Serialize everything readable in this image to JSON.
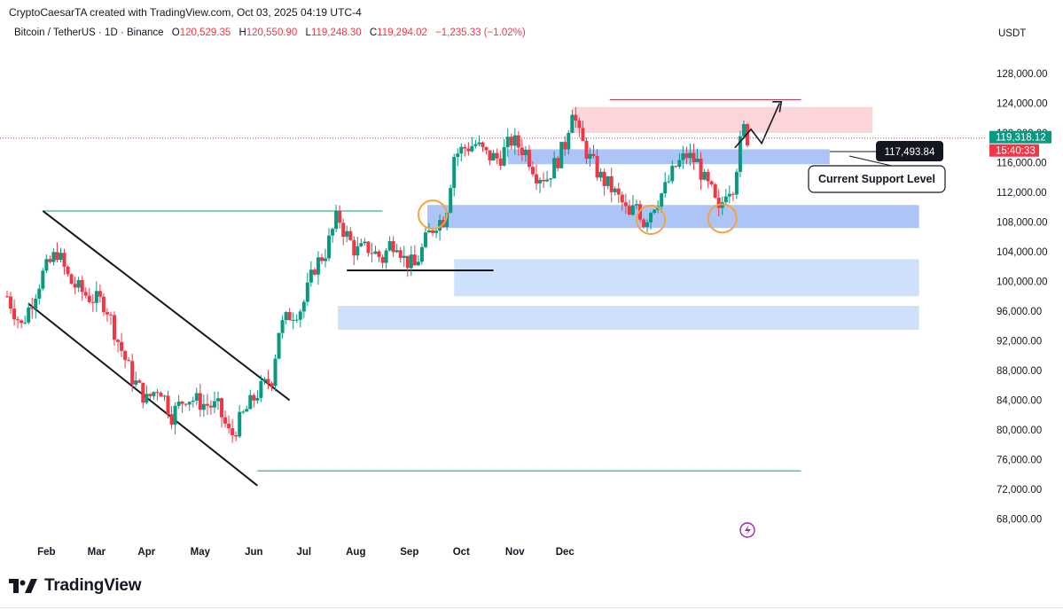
{
  "caption": "CryptoCaesarTA created with TradingView.com, Oct 03, 2025 04:19 UTC-4",
  "legend": {
    "symbol": "Bitcoin / TetherUS · 1D · Binance",
    "o_label": "O",
    "o": "120,529.35",
    "h_label": "H",
    "h": "120,550.90",
    "l_label": "L",
    "l": "119,248.30",
    "c_label": "C",
    "c": "119,294.02",
    "change": "−1,235.33 (−1.02%)"
  },
  "currency": "USDT",
  "brand": "TradingView",
  "colors": {
    "up": "#089981",
    "down": "#f23645",
    "resistance": "#fbd5d8",
    "support": "#6a93f0",
    "support_light": "#cfe0fb",
    "accent": "#2962ff"
  },
  "chart_data": {
    "type": "candlestick",
    "title": "Bitcoin / TetherUS · 1D · Binance",
    "price_scale": "linear",
    "ylim": [
      64000,
      131000
    ],
    "y_ticks": [
      "128,000.00",
      "124,000.00",
      "120,000.00",
      "116,000.00",
      "112,000.00",
      "108,000.00",
      "104,000.00",
      "100,000.00",
      "96,000.00",
      "92,000.00",
      "88,000.00",
      "84,000.00",
      "80,000.00",
      "76,000.00",
      "72,000.00",
      "68,000.00"
    ],
    "x_ticks": [
      "Feb",
      "Mar",
      "Apr",
      "May",
      "Jun",
      "Jul",
      "Aug",
      "Sep",
      "Oct",
      "Nov",
      "Dec"
    ],
    "last_price": "119,318.12",
    "countdown": "15:40:33",
    "annotation_price": "117,493.84",
    "annotation_text": "Current Support Level",
    "close_path": [
      {
        "x": 0,
        "y": 98000
      },
      {
        "x": 8,
        "y": 94000
      },
      {
        "x": 20,
        "y": 101000
      },
      {
        "x": 28,
        "y": 104000
      },
      {
        "x": 35,
        "y": 100000
      },
      {
        "x": 45,
        "y": 98000
      },
      {
        "x": 55,
        "y": 97000
      },
      {
        "x": 62,
        "y": 92000
      },
      {
        "x": 70,
        "y": 87000
      },
      {
        "x": 78,
        "y": 84000
      },
      {
        "x": 85,
        "y": 86000
      },
      {
        "x": 92,
        "y": 82000
      },
      {
        "x": 100,
        "y": 84500
      },
      {
        "x": 110,
        "y": 83500
      },
      {
        "x": 118,
        "y": 83000
      },
      {
        "x": 125,
        "y": 79000
      },
      {
        "x": 132,
        "y": 82000
      },
      {
        "x": 140,
        "y": 85000
      },
      {
        "x": 148,
        "y": 87000
      },
      {
        "x": 152,
        "y": 93500
      },
      {
        "x": 158,
        "y": 95500
      },
      {
        "x": 165,
        "y": 96500
      },
      {
        "x": 172,
        "y": 102000
      },
      {
        "x": 178,
        "y": 104000
      },
      {
        "x": 185,
        "y": 109000
      },
      {
        "x": 188,
        "y": 107000
      },
      {
        "x": 195,
        "y": 104000
      },
      {
        "x": 202,
        "y": 104500
      },
      {
        "x": 210,
        "y": 103000
      },
      {
        "x": 214,
        "y": 105000
      },
      {
        "x": 218,
        "y": 105500
      },
      {
        "x": 222,
        "y": 103000
      },
      {
        "x": 228,
        "y": 102000
      },
      {
        "x": 235,
        "y": 106000
      },
      {
        "x": 240,
        "y": 108000
      },
      {
        "x": 245,
        "y": 108500
      },
      {
        "x": 250,
        "y": 117000
      },
      {
        "x": 256,
        "y": 118000
      },
      {
        "x": 262,
        "y": 118500
      },
      {
        "x": 268,
        "y": 117000
      },
      {
        "x": 275,
        "y": 116500
      },
      {
        "x": 282,
        "y": 119000
      },
      {
        "x": 290,
        "y": 117500
      },
      {
        "x": 296,
        "y": 114500
      },
      {
        "x": 302,
        "y": 114000
      },
      {
        "x": 308,
        "y": 116500
      },
      {
        "x": 312,
        "y": 118500
      },
      {
        "x": 316,
        "y": 123500
      },
      {
        "x": 320,
        "y": 119500
      },
      {
        "x": 326,
        "y": 116500
      },
      {
        "x": 332,
        "y": 114000
      },
      {
        "x": 338,
        "y": 112500
      },
      {
        "x": 344,
        "y": 110500
      },
      {
        "x": 348,
        "y": 108500
      },
      {
        "x": 352,
        "y": 110500
      },
      {
        "x": 356,
        "y": 108000
      },
      {
        "x": 362,
        "y": 110500
      },
      {
        "x": 368,
        "y": 112500
      },
      {
        "x": 374,
        "y": 115500
      },
      {
        "x": 380,
        "y": 117000
      },
      {
        "x": 386,
        "y": 116000
      },
      {
        "x": 390,
        "y": 113500
      },
      {
        "x": 394,
        "y": 112000
      },
      {
        "x": 398,
        "y": 109000
      },
      {
        "x": 402,
        "y": 112500
      },
      {
        "x": 406,
        "y": 113000
      },
      {
        "x": 410,
        "y": 118500
      },
      {
        "x": 412,
        "y": 120500
      },
      {
        "x": 414,
        "y": 119300
      }
    ],
    "x_domain": [
      0,
      414
    ],
    "zones": [
      {
        "name": "resistance-zone",
        "from_x": 316,
        "to_x": 484,
        "y_low": 120000,
        "y_high": 123500,
        "kind": "resistance"
      },
      {
        "name": "support-zone-upper",
        "from_x": 280,
        "to_x": 460,
        "y_low": 115800,
        "y_high": 117800,
        "kind": "support"
      },
      {
        "name": "support-zone-lower",
        "from_x": 235,
        "to_x": 510,
        "y_low": 107200,
        "y_high": 110300,
        "kind": "support"
      },
      {
        "name": "support-zone-mid",
        "from_x": 250,
        "to_x": 510,
        "y_low": 98000,
        "y_high": 103000,
        "kind": "support_light"
      },
      {
        "name": "support-zone-bottom",
        "from_x": 185,
        "to_x": 510,
        "y_low": 93500,
        "y_high": 96700,
        "kind": "support_light"
      }
    ],
    "channel": {
      "upper": [
        [
          20,
          109500
        ],
        [
          158,
          84000
        ]
      ],
      "lower": [
        [
          12,
          97000
        ],
        [
          140,
          72500
        ]
      ]
    },
    "green_levels": [
      {
        "y": 109500,
        "from_x": 20,
        "to_x": 210
      },
      {
        "y": 74500,
        "from_x": 140,
        "to_x": 444
      }
    ],
    "red_level": {
      "y": 124500,
      "from_x": 337,
      "to_x": 444
    },
    "black_level": {
      "y": 101500,
      "from_x": 190,
      "to_x": 272
    },
    "highlight_circles": [
      [
        238,
        109000
      ],
      [
        360,
        108300
      ],
      [
        400,
        108500
      ]
    ]
  }
}
